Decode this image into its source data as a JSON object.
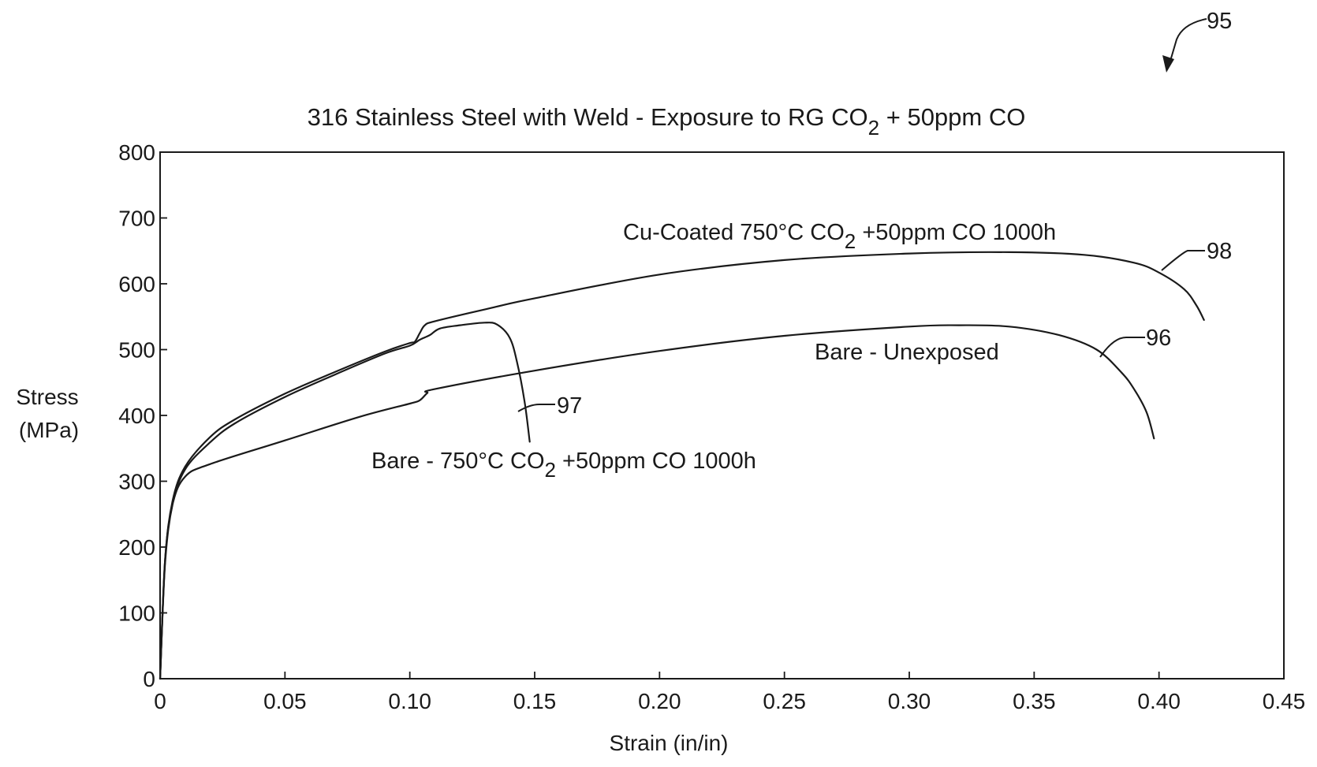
{
  "figure": {
    "ref": "95"
  },
  "chart_data": {
    "type": "line",
    "title": "316 Stainless Steel with Weld - Exposure to RG CO2 + 50ppm CO",
    "title_parts": [
      "316 Stainless Steel with Weld - Exposure to RG CO",
      "2",
      " + 50ppm CO"
    ],
    "xlabel": "Strain (in/in)",
    "ylabel": [
      "Stress",
      "(MPa)"
    ],
    "xlim": [
      0,
      0.45
    ],
    "ylim": [
      0,
      800
    ],
    "xticks": [
      0,
      0.05,
      0.1,
      0.15,
      0.2,
      0.25,
      0.3,
      0.35,
      0.4,
      0.45
    ],
    "xtick_labels": [
      "0",
      "0.05",
      "0.10",
      "0.15",
      "0.20",
      "0.25",
      "0.30",
      "0.35",
      "0.40",
      "0.45"
    ],
    "yticks": [
      0,
      100,
      200,
      300,
      400,
      500,
      600,
      700,
      800
    ],
    "ytick_labels": [
      "0",
      "100",
      "200",
      "300",
      "400",
      "500",
      "600",
      "700",
      "800"
    ],
    "grid": false,
    "series": [
      {
        "name": "Cu-Coated 750°C CO2 +50ppm CO 1000h",
        "label_parts": [
          "Cu-Coated 750°C CO",
          "2",
          " +50ppm CO 1000h"
        ],
        "ref": "98",
        "x": [
          0,
          0.002,
          0.005,
          0.01,
          0.02,
          0.03,
          0.05,
          0.07,
          0.09,
          0.1,
          0.102,
          0.104,
          0.106,
          0.11,
          0.13,
          0.15,
          0.2,
          0.25,
          0.3,
          0.34,
          0.37,
          0.39,
          0.4,
          0.41,
          0.415,
          0.418
        ],
        "y": [
          0,
          180,
          270,
          322,
          367,
          394,
          433,
          466,
          497,
          510,
          512,
          525,
          537,
          543,
          561,
          578,
          614,
          636,
          646,
          648,
          644,
          632,
          617,
          592,
          567,
          545
        ]
      },
      {
        "name": "Bare - 750°C CO2 +50ppm CO 1000h",
        "label_parts": [
          "Bare - 750°C CO",
          "2",
          " +50ppm CO 1000h"
        ],
        "ref": "97",
        "x": [
          0,
          0.002,
          0.005,
          0.01,
          0.02,
          0.03,
          0.05,
          0.07,
          0.09,
          0.1,
          0.104,
          0.108,
          0.112,
          0.12,
          0.13,
          0.135,
          0.14,
          0.143,
          0.146,
          0.148
        ],
        "y": [
          0,
          175,
          265,
          318,
          359,
          388,
          428,
          462,
          494,
          506,
          515,
          522,
          532,
          537,
          541,
          538,
          518,
          480,
          420,
          360
        ]
      },
      {
        "name": "Bare - Unexposed",
        "label_parts": [
          "Bare - Unexposed"
        ],
        "ref": "96",
        "x": [
          0,
          0.002,
          0.005,
          0.01,
          0.02,
          0.05,
          0.08,
          0.1,
          0.104,
          0.107,
          0.11,
          0.15,
          0.2,
          0.25,
          0.3,
          0.32,
          0.34,
          0.36,
          0.375,
          0.385,
          0.39,
          0.395,
          0.398
        ],
        "y": [
          0,
          180,
          265,
          307,
          326,
          362,
          398,
          418,
          423,
          434,
          440,
          468,
          498,
          521,
          535,
          537,
          535,
          522,
          500,
          465,
          440,
          405,
          365
        ]
      }
    ]
  }
}
